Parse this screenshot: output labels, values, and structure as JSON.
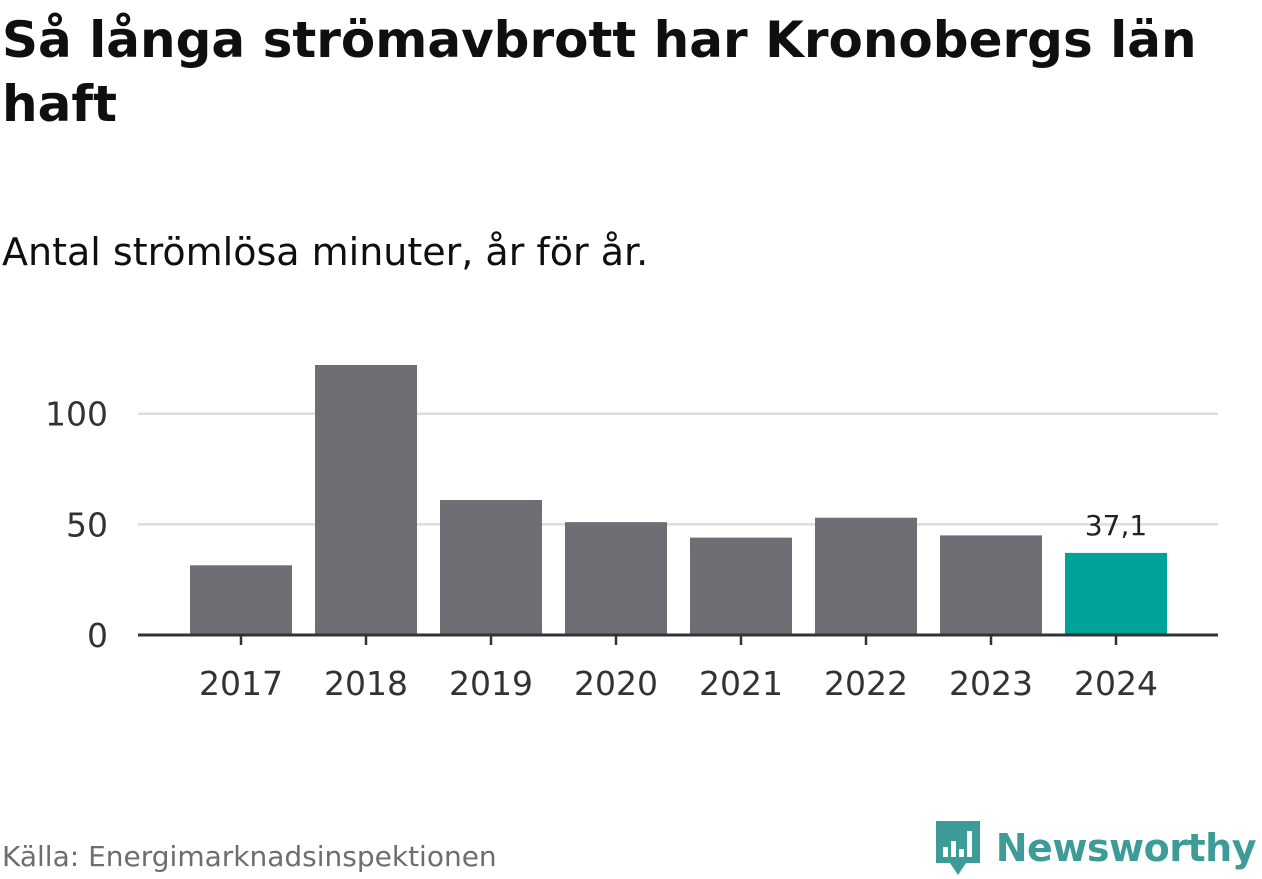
{
  "title": "Så långa strömavbrott har Kronobergs län haft",
  "subtitle": "Antal strömlösa minuter, år för år.",
  "source": "Källa: Energimarknadsinspektionen",
  "brand": "Newsworthy",
  "colors": {
    "bar": "#6f6e74",
    "highlight": "#00a39a",
    "grid": "#dddddd",
    "axis": "#333333",
    "brand": "#3d9c97"
  },
  "chart_data": {
    "type": "bar",
    "categories": [
      "2017",
      "2018",
      "2019",
      "2020",
      "2021",
      "2022",
      "2023",
      "2024"
    ],
    "values": [
      31.5,
      122,
      61,
      51,
      44,
      53,
      45,
      37.1
    ],
    "highlight_index": 7,
    "data_labels": [
      {
        "index": 7,
        "text": "37,1"
      }
    ],
    "yticks": [
      {
        "value": 0,
        "label": "0"
      },
      {
        "value": 50,
        "label": "50"
      },
      {
        "value": 100,
        "label": "100"
      }
    ],
    "ylim": [
      0,
      122
    ],
    "title": "Så långa strömavbrott har Kronobergs län haft",
    "xlabel": "",
    "ylabel": "",
    "grid": true
  }
}
